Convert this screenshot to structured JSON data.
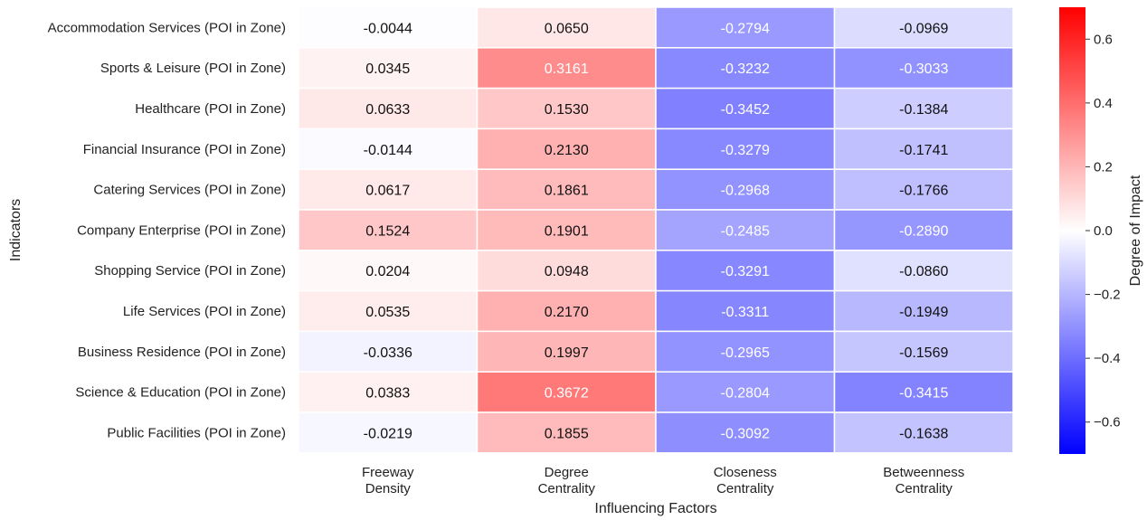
{
  "chart_data": {
    "type": "heatmap",
    "title": "",
    "xlabel": "Influencing Factors",
    "ylabel": "Indicators",
    "colorbar_label": "Degree of Impact",
    "vmin": -0.7,
    "vmax": 0.7,
    "colorbar_ticks": [
      "0.6",
      "0.4",
      "0.2",
      "0.0",
      "−0.2",
      "−0.4",
      "−0.6"
    ],
    "colorbar_tick_values": [
      0.6,
      0.4,
      0.2,
      0.0,
      -0.2,
      -0.4,
      -0.6
    ],
    "colors": {
      "low": "#0000ff",
      "mid": "#ffffff",
      "high": "#ff0000"
    },
    "columns": [
      [
        "Freeway",
        "Density"
      ],
      [
        "Degree",
        "Centrality"
      ],
      [
        "Closeness",
        "Centrality"
      ],
      [
        "Betweenness",
        "Centrality"
      ]
    ],
    "rows": [
      "Accommodation Services (POI in Zone)",
      "Sports & Leisure (POI in Zone)",
      "Healthcare (POI in Zone)",
      "Financial Insurance (POI in Zone)",
      "Catering Services (POI in Zone)",
      "Company Enterprise (POI in Zone)",
      "Shopping Service (POI in Zone)",
      "Life Services (POI in Zone)",
      "Business Residence (POI in Zone)",
      "Science & Education (POI in Zone)",
      "Public Facilities (POI in Zone)"
    ],
    "values": [
      [
        -0.0044,
        0.065,
        -0.2794,
        -0.0969
      ],
      [
        0.0345,
        0.3161,
        -0.3232,
        -0.3033
      ],
      [
        0.0633,
        0.153,
        -0.3452,
        -0.1384
      ],
      [
        -0.0144,
        0.213,
        -0.3279,
        -0.1741
      ],
      [
        0.0617,
        0.1861,
        -0.2968,
        -0.1766
      ],
      [
        0.1524,
        0.1901,
        -0.2485,
        -0.289
      ],
      [
        0.0204,
        0.0948,
        -0.3291,
        -0.086
      ],
      [
        0.0535,
        0.217,
        -0.3311,
        -0.1949
      ],
      [
        -0.0336,
        0.1997,
        -0.2965,
        -0.1569
      ],
      [
        0.0383,
        0.3672,
        -0.2804,
        -0.3415
      ],
      [
        -0.0219,
        0.1855,
        -0.3092,
        -0.1638
      ]
    ],
    "value_labels": [
      [
        "-0.0044",
        "0.0650",
        "-0.2794",
        "-0.0969"
      ],
      [
        "0.0345",
        "0.3161",
        "-0.3232",
        "-0.3033"
      ],
      [
        "0.0633",
        "0.1530",
        "-0.3452",
        "-0.1384"
      ],
      [
        "-0.0144",
        "0.2130",
        "-0.3279",
        "-0.1741"
      ],
      [
        "0.0617",
        "0.1861",
        "-0.2968",
        "-0.1766"
      ],
      [
        "0.1524",
        "0.1901",
        "-0.2485",
        "-0.2890"
      ],
      [
        "0.0204",
        "0.0948",
        "-0.3291",
        "-0.0860"
      ],
      [
        "0.0535",
        "0.2170",
        "-0.3311",
        "-0.1949"
      ],
      [
        "-0.0336",
        "0.1997",
        "-0.2965",
        "-0.1569"
      ],
      [
        "0.0383",
        "0.3672",
        "-0.2804",
        "-0.3415"
      ],
      [
        "-0.0219",
        "0.1855",
        "-0.3092",
        "-0.1638"
      ]
    ]
  }
}
